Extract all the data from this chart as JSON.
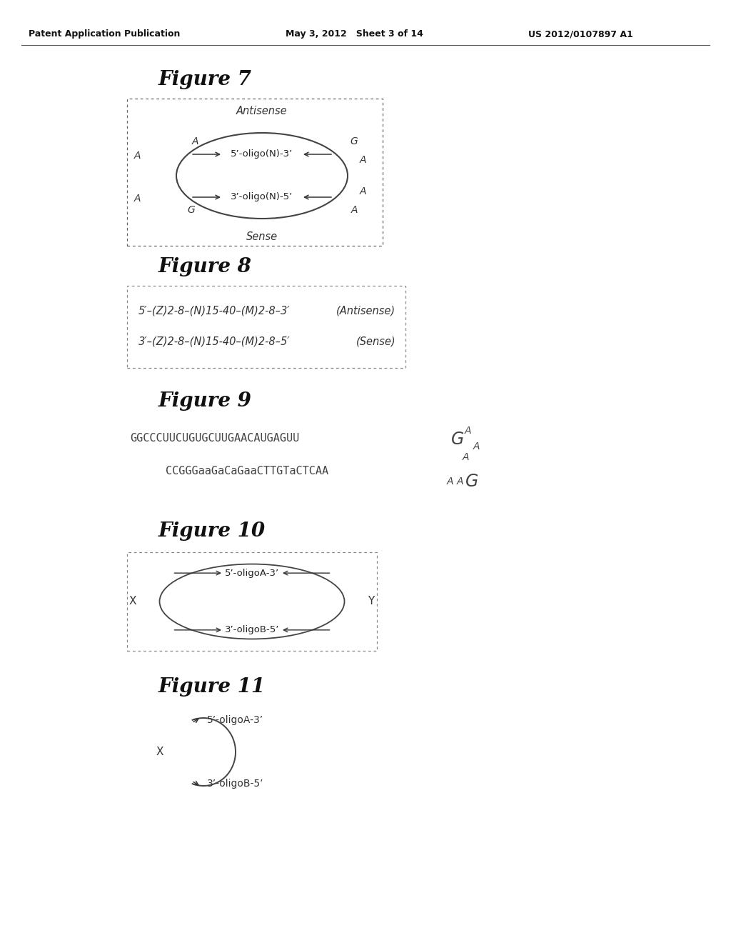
{
  "header_left": "Patent Application Publication",
  "header_mid": "May 3, 2012   Sheet 3 of 14",
  "header_right": "US 2012/0107897 A1",
  "fig7_title": "Figure 7",
  "fig8_title": "Figure 8",
  "fig9_title": "Figure 9",
  "fig10_title": "Figure 10",
  "fig11_title": "Figure 11",
  "fig7_antisense": "Antisense",
  "fig7_sense": "Sense",
  "fig7_top_label": "5’-oligo(N)-3’",
  "fig7_bot_label": "3’-oligo(N)-5’",
  "fig8_line1": "5′–(Z)2-8–(N)15-40–(M)2-8–3′",
  "fig8_line1_right": "(Antisense)",
  "fig8_line2": "3′–(Z)2-8–(N)15-40–(M)2-8–5′",
  "fig8_line2_right": "(Sense)",
  "fig9_top": "GGCCCUUCUGUGCUUGAACAUGAGUU",
  "fig9_bot": "CCGGGaaGaCaGaaCTTGTaCTCAA",
  "fig10_top_label": "5’-oligoA-3’",
  "fig10_bot_label": "3’-oligoB-5’",
  "fig10_X": "X",
  "fig10_Y": "Y",
  "fig11_top_label": "5’-oligoA-3’",
  "fig11_bot_label": "3’-oligoB-5’",
  "fig11_X": "X",
  "bg_color": "#ffffff"
}
